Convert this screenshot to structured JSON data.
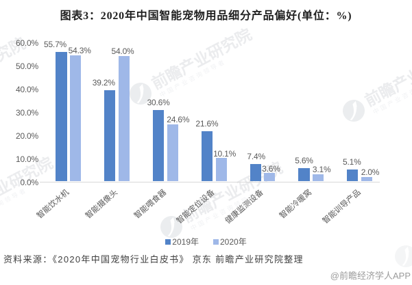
{
  "title": "图表3：2020年中国智能宠物用品细分产品偏好(单位：%)",
  "chart_data": {
    "type": "bar",
    "categories": [
      "智能饮水机",
      "智能摄像头",
      "智能喂食器",
      "智能定位设备",
      "健康监测设备",
      "智能冷暖窝",
      "智能训导产品"
    ],
    "series": [
      {
        "name": "2019年",
        "color": "#5283c8",
        "values": [
          55.7,
          39.2,
          30.6,
          21.6,
          7.4,
          5.6,
          5.1
        ],
        "data_labels": [
          "55.7%",
          "39.2%",
          "30.6%",
          "21.6%",
          "7.4%",
          "5.6%",
          "5.1%"
        ]
      },
      {
        "name": "2020年",
        "color": "#9fb8e8",
        "values": [
          54.3,
          54.0,
          24.6,
          10.1,
          3.6,
          3.1,
          2.0
        ],
        "data_labels": [
          "54.3%",
          "54.0%",
          "24.6%",
          "10.1%",
          "3.6%",
          "3.1%",
          "2.0%"
        ]
      }
    ],
    "title": "图表3：2020年中国智能宠物用品细分产品偏好(单位：%)",
    "xlabel": "",
    "ylabel": "",
    "ylim": [
      0,
      60
    ],
    "y_tick_labels": [
      "0.0%",
      "10.0%",
      "20.0%",
      "30.0%",
      "40.0%",
      "50.0%",
      "60.0%"
    ],
    "grid": false,
    "legend_position": "bottom",
    "legend": [
      "2019年",
      "2020年"
    ]
  },
  "watermark": {
    "text": "前瞻产业研究院",
    "subtext": "中国产业咨询领导者",
    "logo": "qianzhan-circle-swoosh-logo"
  },
  "source_note": "资料来源：《2020年中国宠物行业白皮书》 京东 前瞻产业研究院整理",
  "credit": "@前瞻经济学人APP",
  "colors": {
    "series_2019": "#5283c8",
    "series_2020": "#9fb8e8",
    "axis_text": "#595959",
    "baseline": "#d9d9d9",
    "title_text": "#1f1f1f",
    "source_text": "#3f3f3f",
    "credit_text": "#9b9b9b",
    "watermark": "#ebecee",
    "background": "#ffffff"
  }
}
